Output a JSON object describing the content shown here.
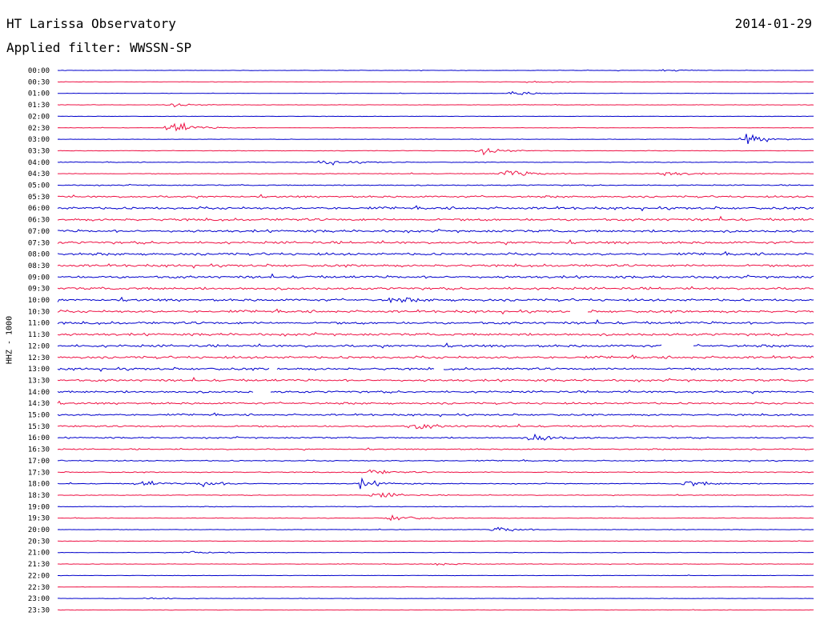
{
  "header": {
    "station": "HT Larissa Observatory",
    "date": "2014-01-29",
    "filter": "Applied filter: WWSSN-SP"
  },
  "chart_data": {
    "type": "line",
    "title": "HT Larissa Observatory",
    "subtitle": "Applied filter: WWSSN-SP",
    "date": "2014-01-29",
    "ylabel": "HHZ - 1000",
    "xlabel": "",
    "row_labels": [
      "00:00",
      "00:30",
      "01:00",
      "01:30",
      "02:00",
      "02:30",
      "03:00",
      "03:30",
      "04:00",
      "04:30",
      "05:00",
      "05:30",
      "06:00",
      "06:30",
      "07:00",
      "07:30",
      "08:00",
      "08:30",
      "09:00",
      "09:30",
      "10:00",
      "10:30",
      "11:00",
      "11:30",
      "12:00",
      "12:30",
      "13:00",
      "13:30",
      "14:00",
      "14:30",
      "15:00",
      "15:30",
      "16:00",
      "16:30",
      "17:00",
      "17:30",
      "18:00",
      "18:30",
      "19:00",
      "19:30",
      "20:00",
      "20:30",
      "21:00",
      "21:30",
      "22:00",
      "22:30",
      "23:00",
      "23:30"
    ],
    "row_colors": [
      "#0000cc",
      "#ee1144"
    ],
    "noise_level": [
      0.3,
      0.3,
      0.3,
      0.35,
      0.35,
      0.35,
      0.35,
      0.45,
      0.55,
      0.6,
      0.9,
      1.6,
      2.0,
      2.0,
      2.0,
      2.0,
      2.0,
      2.0,
      2.0,
      2.0,
      2.0,
      2.0,
      2.0,
      2.0,
      2.0,
      2.0,
      1.9,
      1.8,
      1.7,
      1.6,
      1.5,
      1.4,
      1.2,
      1.0,
      0.9,
      0.8,
      0.7,
      0.6,
      0.55,
      0.5,
      0.45,
      0.45,
      0.4,
      0.4,
      0.35,
      0.35,
      0.35,
      0.35
    ],
    "events": [
      {
        "row": 0,
        "t": 0.8,
        "amp": 3
      },
      {
        "row": 1,
        "t": 0.62,
        "amp": 3
      },
      {
        "row": 2,
        "t": 0.6,
        "amp": 5
      },
      {
        "row": 3,
        "t": 0.15,
        "amp": 4
      },
      {
        "row": 5,
        "t": 0.15,
        "amp": 12
      },
      {
        "row": 6,
        "t": 0.91,
        "amp": 10
      },
      {
        "row": 7,
        "t": 0.56,
        "amp": 8
      },
      {
        "row": 8,
        "t": 0.35,
        "amp": 9
      },
      {
        "row": 9,
        "t": 0.59,
        "amp": 10
      },
      {
        "row": 9,
        "t": 0.8,
        "amp": 6
      },
      {
        "row": 20,
        "t": 0.44,
        "amp": 5
      },
      {
        "row": 31,
        "t": 0.47,
        "amp": 6
      },
      {
        "row": 32,
        "t": 0.63,
        "amp": 8
      },
      {
        "row": 35,
        "t": 0.41,
        "amp": 5
      },
      {
        "row": 36,
        "t": 0.11,
        "amp": 5
      },
      {
        "row": 36,
        "t": 0.19,
        "amp": 6
      },
      {
        "row": 36,
        "t": 0.4,
        "amp": 8
      },
      {
        "row": 36,
        "t": 0.83,
        "amp": 7
      },
      {
        "row": 37,
        "t": 0.42,
        "amp": 7
      },
      {
        "row": 39,
        "t": 0.44,
        "amp": 7
      },
      {
        "row": 40,
        "t": 0.58,
        "amp": 6
      },
      {
        "row": 42,
        "t": 0.17,
        "amp": 4
      },
      {
        "row": 43,
        "t": 0.5,
        "amp": 3
      },
      {
        "row": 46,
        "t": 0.12,
        "amp": 3
      }
    ],
    "gaps": [
      {
        "row": 21,
        "start": 0.68,
        "end": 0.7
      },
      {
        "row": 24,
        "start": 0.8,
        "end": 0.84
      },
      {
        "row": 26,
        "start": 0.28,
        "end": 0.29
      },
      {
        "row": 26,
        "start": 0.5,
        "end": 0.51
      },
      {
        "row": 28,
        "start": 0.26,
        "end": 0.28
      }
    ],
    "grid": false,
    "legend": "none"
  }
}
